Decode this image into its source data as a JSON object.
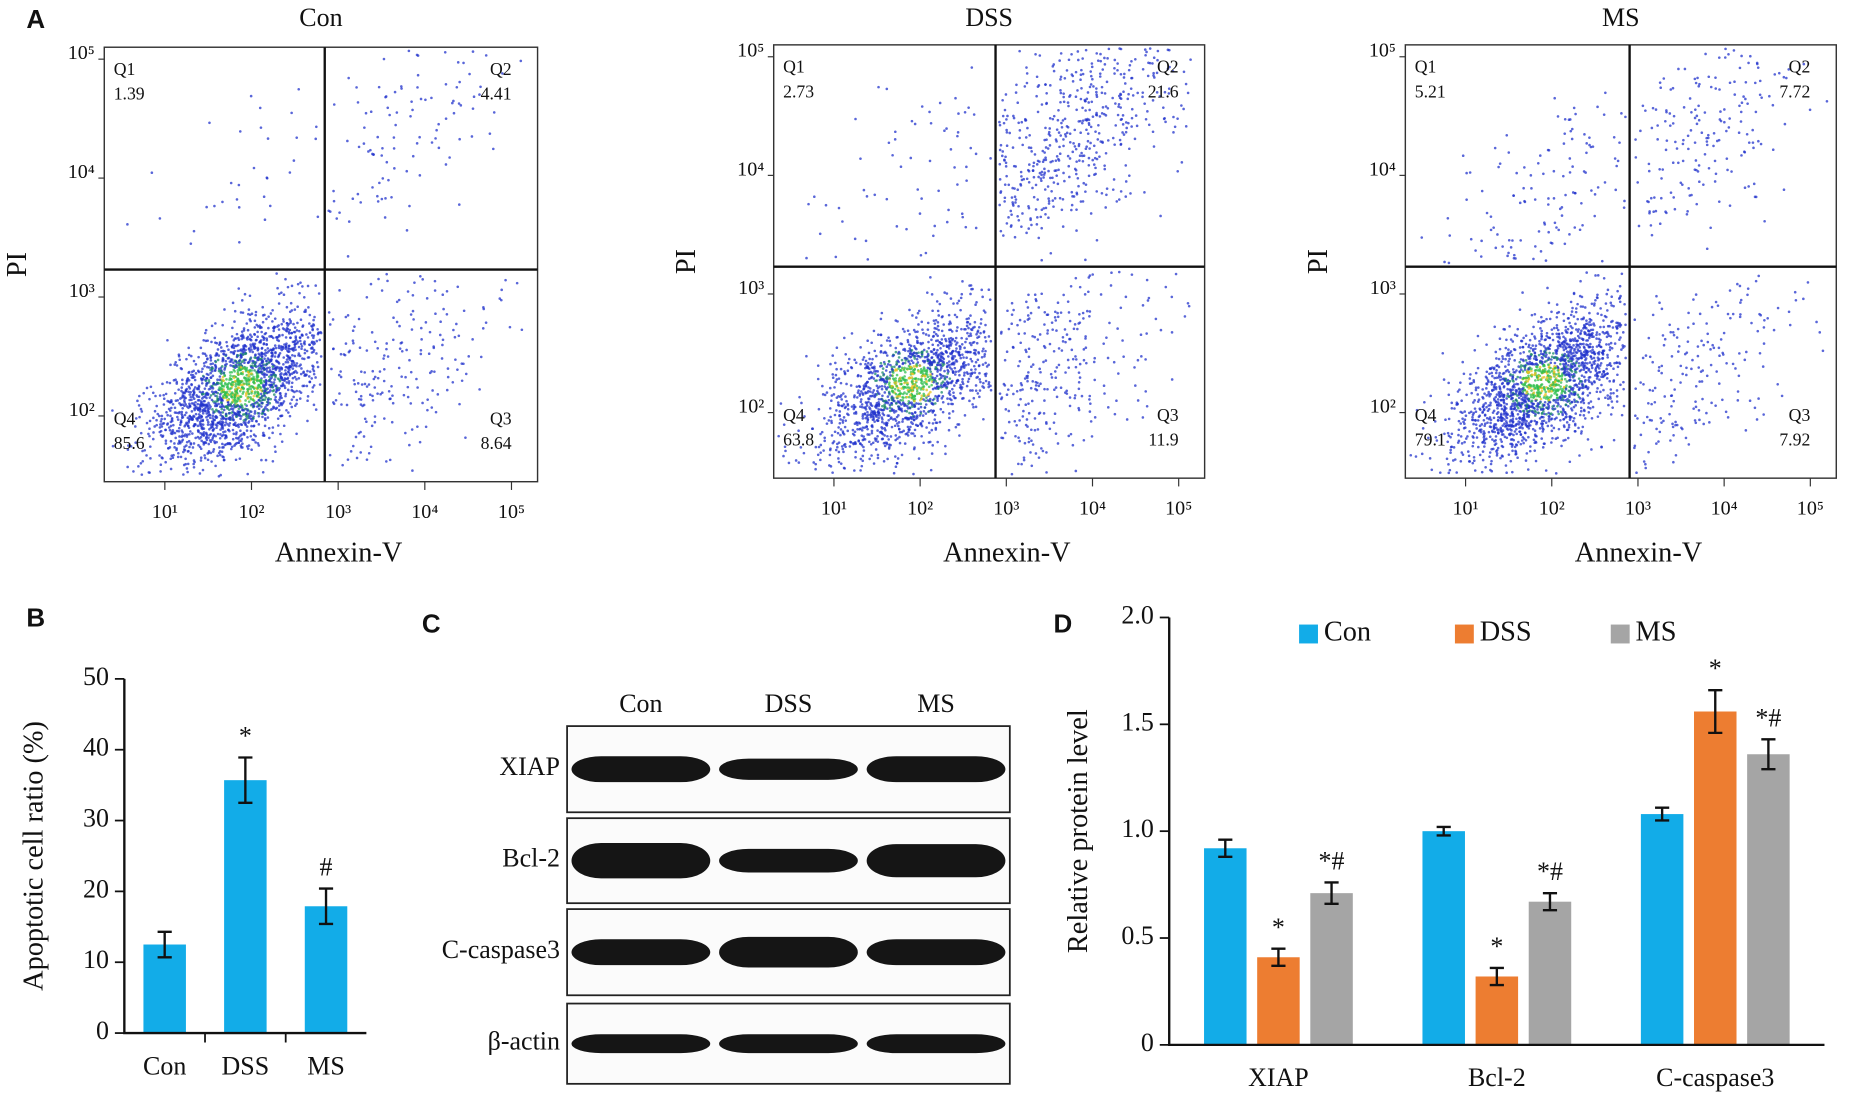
{
  "chart_data": [
    {
      "type": "flow",
      "panel_label": "A",
      "title": "Con",
      "xlabel": "Annexin-V",
      "ylabel": "PI",
      "xscale": "log",
      "yscale": "log",
      "color": "#2233cc",
      "xlim": [
        2,
        200000
      ],
      "ylim": [
        28,
        126000
      ],
      "xticks": [
        {
          "value": 10,
          "label": "10¹"
        },
        {
          "value": 100,
          "label": "10²"
        },
        {
          "value": 1000,
          "label": "10³"
        },
        {
          "value": 10000,
          "label": "10⁴"
        },
        {
          "value": 100000,
          "label": "10⁵"
        }
      ],
      "yticks": [
        {
          "value": 100,
          "label": "10²"
        },
        {
          "value": 1000,
          "label": "10³"
        },
        {
          "value": 10000,
          "label": "10⁴"
        },
        {
          "value": 100000,
          "label": "10⁵"
        }
      ],
      "xgate": 700,
      "ygate": 1700,
      "quadrants": [
        {
          "name": "Q1",
          "value": 1.39
        },
        {
          "name": "Q2",
          "value": 4.41
        },
        {
          "name": "Q3",
          "value": 8.64
        },
        {
          "name": "Q4",
          "value": 85.6
        }
      ]
    },
    {
      "type": "flow",
      "title": "DSS",
      "xlabel": "Annexin-V",
      "ylabel": "PI",
      "xscale": "log",
      "yscale": "log",
      "color": "#2233cc",
      "xlim": [
        2,
        200000
      ],
      "ylim": [
        28,
        126000
      ],
      "xticks": [
        {
          "value": 10,
          "label": "10¹"
        },
        {
          "value": 100,
          "label": "10²"
        },
        {
          "value": 1000,
          "label": "10³"
        },
        {
          "value": 10000,
          "label": "10⁴"
        },
        {
          "value": 100000,
          "label": "10⁵"
        }
      ],
      "yticks": [
        {
          "value": 100,
          "label": "10²"
        },
        {
          "value": 1000,
          "label": "10³"
        },
        {
          "value": 10000,
          "label": "10⁴"
        },
        {
          "value": 100000,
          "label": "10⁵"
        }
      ],
      "xgate": 750,
      "ygate": 1700,
      "quadrants": [
        {
          "name": "Q1",
          "value": 2.73
        },
        {
          "name": "Q2",
          "value": 21.6
        },
        {
          "name": "Q3",
          "value": 11.9
        },
        {
          "name": "Q4",
          "value": 63.8
        }
      ]
    },
    {
      "type": "flow",
      "title": "MS",
      "xlabel": "Annexin-V",
      "ylabel": "PI",
      "xscale": "log",
      "yscale": "log",
      "color": "#2233cc",
      "xlim": [
        2,
        200000
      ],
      "ylim": [
        28,
        126000
      ],
      "xticks": [
        {
          "value": 10,
          "label": "10¹"
        },
        {
          "value": 100,
          "label": "10²"
        },
        {
          "value": 1000,
          "label": "10³"
        },
        {
          "value": 10000,
          "label": "10⁴"
        },
        {
          "value": 100000,
          "label": "10⁵"
        }
      ],
      "yticks": [
        {
          "value": 100,
          "label": "10²"
        },
        {
          "value": 1000,
          "label": "10³"
        },
        {
          "value": 10000,
          "label": "10⁴"
        },
        {
          "value": 100000,
          "label": "10⁵"
        }
      ],
      "xgate": 800,
      "ygate": 1700,
      "quadrants": [
        {
          "name": "Q1",
          "value": 5.21
        },
        {
          "name": "Q2",
          "value": 7.72
        },
        {
          "name": "Q3",
          "value": 7.92
        },
        {
          "name": "Q4",
          "value": 79.1
        }
      ]
    },
    {
      "type": "bar",
      "panel_label": "B",
      "ylabel": "Apoptotic cell ratio (%)",
      "color": "#12ace8",
      "categories": [
        "Con",
        "DSS",
        "MS"
      ],
      "values": [
        12.5,
        35.7,
        17.9
      ],
      "errors": [
        1.8,
        3.2,
        2.5
      ],
      "markers": [
        null,
        "*",
        "#"
      ],
      "ylim": [
        0,
        50
      ],
      "yticks": [
        0,
        10,
        20,
        30,
        40,
        50
      ]
    },
    {
      "type": "bar",
      "panel_label": "D",
      "ylabel": "Relative protein level",
      "categories": [
        "XIAP",
        "Bcl-2",
        "C-caspase3"
      ],
      "series": [
        {
          "name": "Con",
          "color": "#12ace8",
          "values": [
            0.92,
            1.0,
            1.08
          ],
          "errors": [
            0.04,
            0.02,
            0.03
          ]
        },
        {
          "name": "DSS",
          "color": "#ed7d31",
          "values": [
            0.41,
            0.32,
            1.56
          ],
          "errors": [
            0.04,
            0.04,
            0.1
          ],
          "markers": [
            "*",
            "*",
            "*"
          ]
        },
        {
          "name": "MS",
          "color": "#a5a5a5",
          "values": [
            0.71,
            0.67,
            1.36
          ],
          "errors": [
            0.05,
            0.04,
            0.07
          ],
          "markers": [
            "*#",
            "*#",
            "*#"
          ]
        }
      ],
      "ylim": [
        0,
        2
      ],
      "yticks": [
        0,
        0.5,
        {
          "value": 1,
          "label": "1.0"
        },
        1.5,
        {
          "value": 2,
          "label": "2.0"
        }
      ]
    }
  ],
  "blot": {
    "panel_label": "C",
    "lanes": [
      "Con",
      "DSS",
      "MS"
    ],
    "rows": [
      "XIAP",
      "Bcl-2",
      "C-caspase3",
      "β-actin"
    ]
  }
}
